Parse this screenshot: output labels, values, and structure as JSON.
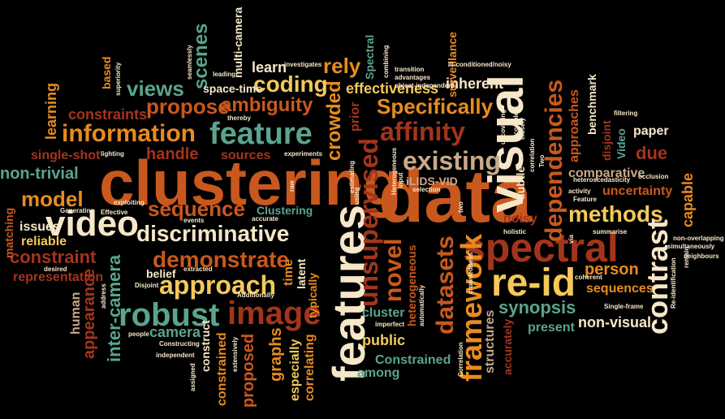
{
  "words": [
    {
      "id": "clustering",
      "text": "clustering"
    },
    {
      "id": "data",
      "text": "data"
    },
    {
      "id": "features",
      "text": "features"
    },
    {
      "id": "spectral",
      "text": "spectral"
    },
    {
      "id": "visual",
      "text": "visual"
    },
    {
      "id": "video",
      "text": "video"
    },
    {
      "id": "re-id",
      "text": "re-id"
    },
    {
      "id": "image",
      "text": "image"
    },
    {
      "id": "robust",
      "text": "robust"
    },
    {
      "id": "feature",
      "text": "feature"
    },
    {
      "id": "information",
      "text": "information"
    },
    {
      "id": "discriminative",
      "text": "discriminative"
    },
    {
      "id": "approach",
      "text": "approach"
    },
    {
      "id": "existing",
      "text": "existing"
    },
    {
      "id": "affinity",
      "text": "affinity"
    },
    {
      "id": "model",
      "text": "model"
    },
    {
      "id": "methods",
      "text": "methods"
    },
    {
      "id": "framework",
      "text": "framework"
    },
    {
      "id": "unsupervised",
      "text": "unsupervised"
    },
    {
      "id": "datasets",
      "text": "datasets"
    },
    {
      "id": "novel",
      "text": "novel"
    },
    {
      "id": "contrast",
      "text": "contrast"
    },
    {
      "id": "dependencies",
      "text": "dependencies"
    },
    {
      "id": "demonstrate",
      "text": "demonstrate"
    },
    {
      "id": "sequence",
      "text": "sequence"
    },
    {
      "id": "propose",
      "text": "propose"
    },
    {
      "id": "ambiguity",
      "text": "ambiguity"
    },
    {
      "id": "coding",
      "text": "coding"
    },
    {
      "id": "views",
      "text": "views"
    },
    {
      "id": "scenes",
      "text": "scenes"
    },
    {
      "id": "Specifically",
      "text": "Specifically"
    },
    {
      "id": "effectiveness",
      "text": "effectiveness"
    },
    {
      "id": "inherent",
      "text": "inherent"
    },
    {
      "id": "rely",
      "text": "rely"
    },
    {
      "id": "learn",
      "text": "learn"
    },
    {
      "id": "crowded",
      "text": "crowded"
    },
    {
      "id": "constraint",
      "text": "constraint"
    },
    {
      "id": "representation",
      "text": "representation"
    },
    {
      "id": "non-trivial",
      "text": "non-trivial"
    },
    {
      "id": "single-shot",
      "text": "single-shot"
    },
    {
      "id": "constraints",
      "text": "constraints"
    },
    {
      "id": "learning",
      "text": "learning"
    },
    {
      "id": "handle",
      "text": "handle"
    },
    {
      "id": "sources",
      "text": "sources"
    },
    {
      "id": "camera",
      "text": "camera"
    },
    {
      "id": "inter-camera",
      "text": "inter-camera"
    },
    {
      "id": "appearance",
      "text": "appearance"
    },
    {
      "id": "human",
      "text": "human"
    },
    {
      "id": "issues",
      "text": "issues"
    },
    {
      "id": "reliable",
      "text": "reliable"
    },
    {
      "id": "matching",
      "text": "matching"
    },
    {
      "id": "synopsis",
      "text": "synopsis"
    },
    {
      "id": "present",
      "text": "present"
    },
    {
      "id": "non-visual",
      "text": "non-visual"
    },
    {
      "id": "person",
      "text": "person"
    },
    {
      "id": "sequences",
      "text": "sequences"
    },
    {
      "id": "uncertainty",
      "text": "uncertainty"
    },
    {
      "id": "comparative",
      "text": "comparative"
    },
    {
      "id": "due",
      "text": "due"
    },
    {
      "id": "capable",
      "text": "capable"
    },
    {
      "id": "paper",
      "text": "paper"
    },
    {
      "id": "benchmark",
      "text": "benchmark"
    },
    {
      "id": "approaches",
      "text": "approaches"
    },
    {
      "id": "disjoint",
      "text": "disjoint"
    },
    {
      "id": "Video",
      "text": "Video"
    },
    {
      "id": "noisy",
      "text": "noisy"
    },
    {
      "id": "accurately",
      "text": "accurately"
    },
    {
      "id": "structures",
      "text": "structures"
    },
    {
      "id": "Constrained",
      "text": "Constrained"
    },
    {
      "id": "among",
      "text": "among"
    },
    {
      "id": "public",
      "text": "public"
    },
    {
      "id": "cluster",
      "text": "cluster"
    },
    {
      "id": "heterogeneous",
      "text": "heterogeneous"
    },
    {
      "id": "iLIDS-VID",
      "text": "iLIDS-VID"
    },
    {
      "id": "surveillance",
      "text": "surveillance"
    },
    {
      "id": "Spectral",
      "text": "Spectral"
    },
    {
      "id": "prior",
      "text": "prior"
    },
    {
      "id": "multi-camera",
      "text": "multi-camera"
    },
    {
      "id": "space-time",
      "text": "space-time"
    },
    {
      "id": "based",
      "text": "based"
    },
    {
      "id": "Clustering",
      "text": "Clustering"
    },
    {
      "id": "latent",
      "text": "latent"
    },
    {
      "id": "typically",
      "text": "typically"
    },
    {
      "id": "time",
      "text": "time"
    },
    {
      "id": "graphs",
      "text": "graphs"
    },
    {
      "id": "especially",
      "text": "especially"
    },
    {
      "id": "correlating",
      "text": "correlating"
    },
    {
      "id": "proposed",
      "text": "proposed"
    },
    {
      "id": "constrained",
      "text": "constrained"
    },
    {
      "id": "construct",
      "text": "construct"
    },
    {
      "id": "belief",
      "text": "belief"
    },
    {
      "id": "non-overlapping",
      "text": "non-overlapping"
    },
    {
      "id": "simultaneously",
      "text": "simultaneously"
    },
    {
      "id": "neighbours",
      "text": "neighbours"
    },
    {
      "id": "Re-identification",
      "text": "Re-identification"
    },
    {
      "id": "Single-frame",
      "text": "Single-frame"
    },
    {
      "id": "summarise",
      "text": "summarise"
    },
    {
      "id": "occlusion",
      "text": "occlusion"
    },
    {
      "id": "filtering",
      "text": "filtering"
    },
    {
      "id": "heteroscedasticity",
      "text": "heteroscedasticity"
    },
    {
      "id": "ill-conditioned/noisy",
      "text": "ill-conditioned/noisy"
    },
    {
      "id": "transition",
      "text": "transition"
    },
    {
      "id": "advantages",
      "text": "advantages"
    },
    {
      "id": "object-independent",
      "text": "object-independent"
    },
    {
      "id": "investigates",
      "text": "investigates"
    },
    {
      "id": "combining",
      "text": "combining"
    },
    {
      "id": "leading",
      "text": "leading"
    },
    {
      "id": "seamlessly",
      "text": "seamlessly"
    },
    {
      "id": "superiority",
      "text": "superiority"
    },
    {
      "id": "thereby",
      "text": "thereby"
    },
    {
      "id": "experiments",
      "text": "experiments"
    },
    {
      "id": "lighting",
      "text": "lighting"
    },
    {
      "id": "Effective",
      "text": "Effective"
    },
    {
      "id": "Generating",
      "text": "Generating"
    },
    {
      "id": "exploiting",
      "text": "exploiting"
    },
    {
      "id": "events",
      "text": "events"
    },
    {
      "id": "accurate",
      "text": "accurate"
    },
    {
      "id": "extracted",
      "text": "extracted"
    },
    {
      "id": "desired",
      "text": "desired"
    },
    {
      "id": "Disjoint",
      "text": "Disjoint"
    },
    {
      "id": "Additionally",
      "text": "Additionally"
    },
    {
      "id": "address",
      "text": "address"
    },
    {
      "id": "people",
      "text": "people"
    },
    {
      "id": "Constructing",
      "text": "Constructing"
    },
    {
      "id": "independent",
      "text": "independent"
    },
    {
      "id": "assigned",
      "text": "assigned"
    },
    {
      "id": "extensively",
      "text": "extensively"
    },
    {
      "id": "raw",
      "text": "raw"
    },
    {
      "id": "estimating",
      "text": "estimating"
    },
    {
      "id": "using",
      "text": "using"
    },
    {
      "id": "Heterogeneous",
      "text": "Heterogeneous"
    },
    {
      "id": "input",
      "text": "input"
    },
    {
      "id": "selection",
      "text": "selection"
    },
    {
      "id": "two",
      "text": "two"
    },
    {
      "id": "automatically",
      "text": "automatically"
    },
    {
      "id": "imperfect",
      "text": "imperfect"
    },
    {
      "id": "Correlation",
      "text": "Correlation"
    },
    {
      "id": "crowdedness",
      "text": "crowdedness"
    },
    {
      "id": "holistic",
      "text": "holistic"
    },
    {
      "id": "activity",
      "text": "activity"
    },
    {
      "id": "Feature",
      "text": "Feature"
    },
    {
      "id": "via",
      "text": "via"
    },
    {
      "id": "coherent",
      "text": "coherent"
    },
    {
      "id": "subtle",
      "text": "subtle"
    },
    {
      "id": "Two",
      "text": "Two"
    },
    {
      "id": "correlation",
      "text": "correlation"
    },
    {
      "id": "closely",
      "text": "closely"
    },
    {
      "id": "uncovering",
      "text": "uncovering"
    },
    {
      "id": "complex",
      "text": "complex"
    },
    {
      "id": "remain",
      "text": "remain"
    }
  ]
}
